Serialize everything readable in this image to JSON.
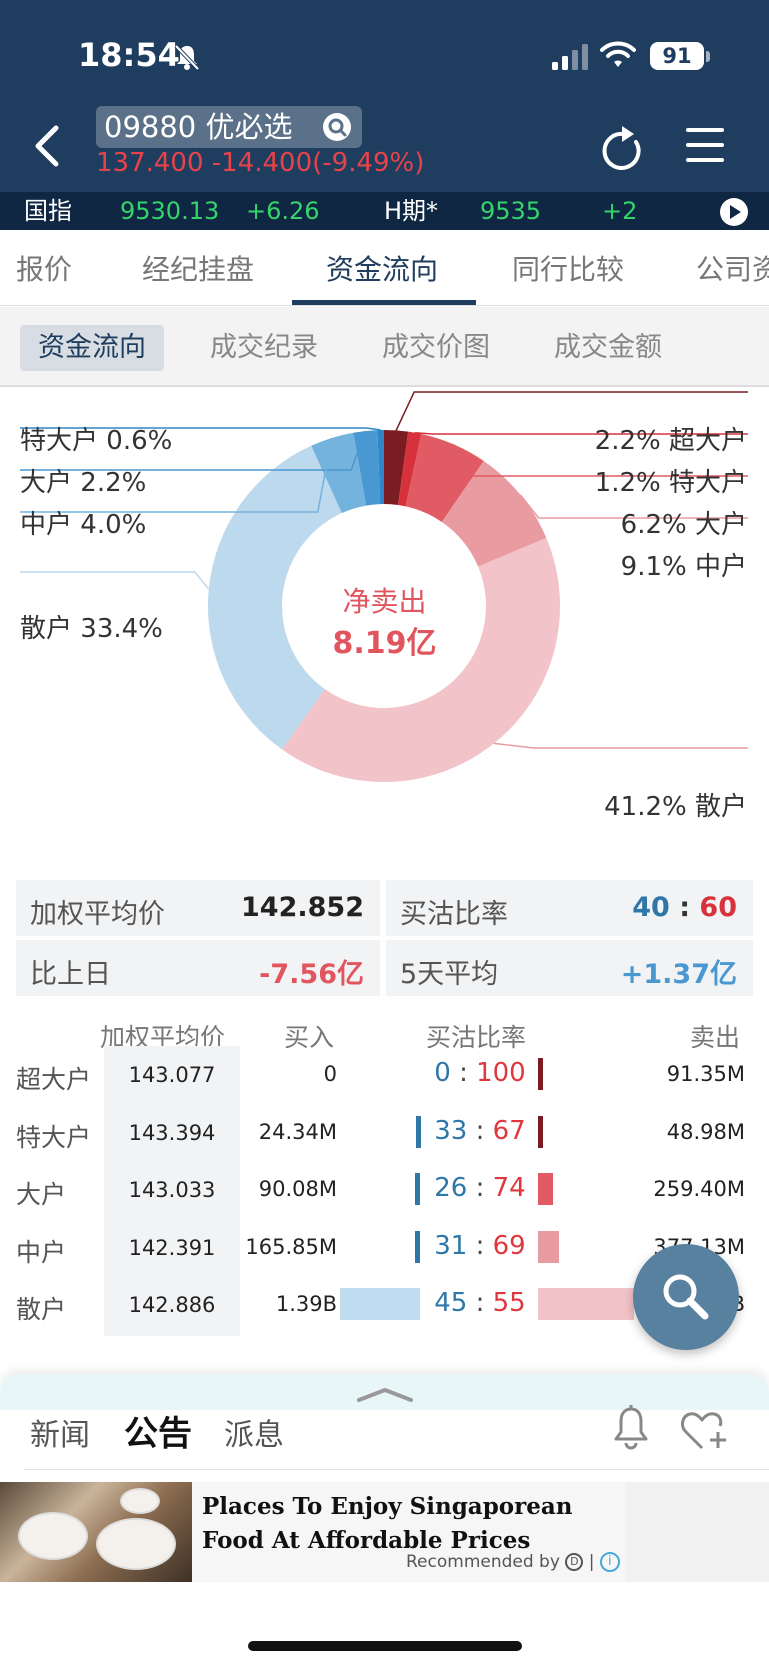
{
  "status_bar": {
    "time": "18:54",
    "battery": "91"
  },
  "header": {
    "ticker": "09880 优必选",
    "quote": "137.400 -14.400(-9.49%)"
  },
  "index_bar": {
    "label1": "国指",
    "value1": "9530.13",
    "change1": "+6.26",
    "label2": "H期*",
    "value2": "9535",
    "change2": "+2"
  },
  "tabs": [
    "报价",
    "经纪挂盘",
    "资金流向",
    "同行比较",
    "公司资"
  ],
  "subtabs": [
    "资金流向",
    "成交纪录",
    "成交价图",
    "成交金额"
  ],
  "donut": {
    "center_title": "净卖出",
    "center_value": "8.19亿",
    "buy_labels": [
      {
        "name": "特大户",
        "pct": "0.6%"
      },
      {
        "name": "大户",
        "pct": "2.2%"
      },
      {
        "name": "中户",
        "pct": "4.0%"
      },
      {
        "name": "散户",
        "pct": "33.4%"
      }
    ],
    "sell_labels": [
      {
        "name": "超大户",
        "pct": "2.2%"
      },
      {
        "name": "特大户",
        "pct": "1.2%"
      },
      {
        "name": "大户",
        "pct": "6.2%"
      },
      {
        "name": "中户",
        "pct": "9.1%"
      },
      {
        "name": "散户",
        "pct": "41.2%"
      }
    ],
    "buy_slices": [
      0.6,
      2.2,
      4.0,
      33.4
    ],
    "sell_slices": [
      2.2,
      1.2,
      6.2,
      9.1,
      41.2
    ],
    "buy_colors": [
      "#2f86c8",
      "#4a98d1",
      "#74b3de",
      "#bcd9ee"
    ],
    "sell_colors": [
      "#7a1c22",
      "#d7323c",
      "#e05b63",
      "#e89ca2",
      "#f2c3c8"
    ]
  },
  "summary": {
    "weighted_avg_label": "加权平均价",
    "weighted_avg": "142.852",
    "ratio_label": "买沽比率",
    "ratio_buy": "40",
    "ratio_colon": ":",
    "ratio_sell": "60",
    "vs_prev_label": "比上日",
    "vs_prev": "-7.56亿",
    "avg5_label": "5天平均",
    "avg5": "+1.37亿"
  },
  "table": {
    "headers": [
      "加权平均价",
      "买入",
      "买沽比率",
      "卖出"
    ],
    "rows": [
      {
        "name": "超大户",
        "avg": "143.077",
        "buy": "0",
        "ratio_buy": "0",
        "ratio_sell": "100",
        "sell": "91.35M",
        "buy_share": 0,
        "sell_share": 0.053
      },
      {
        "name": "特大户",
        "avg": "143.394",
        "buy": "24.34M",
        "ratio_buy": "33",
        "ratio_sell": "67",
        "sell": "48.98M",
        "buy_share": 0.017,
        "sell_share": 0.029
      },
      {
        "name": "大户",
        "avg": "143.033",
        "buy": "90.08M",
        "ratio_buy": "26",
        "ratio_sell": "74",
        "sell": "259.40M",
        "buy_share": 0.065,
        "sell_share": 0.152
      },
      {
        "name": "中户",
        "avg": "142.391",
        "buy": "165.85M",
        "ratio_buy": "31",
        "ratio_sell": "69",
        "sell": "377.13M",
        "buy_share": 0.119,
        "sell_share": 0.221
      },
      {
        "name": "散户",
        "avg": "142.886",
        "buy": "1.39B",
        "ratio_buy": "45",
        "ratio_sell": "55",
        "sell": "1.71B",
        "buy_share": 1.0,
        "sell_share": 1.0
      }
    ]
  },
  "bottom": {
    "tabs": [
      "新闻",
      "公告",
      "派息"
    ],
    "ad_title": "Places To Enjoy Singaporean Food At Affordable Prices",
    "ad_recommended": "Recommended by"
  },
  "icons": [
    "bell-muted-icon",
    "signal-icon",
    "wifi-icon",
    "back-icon",
    "search-icon",
    "refresh-icon",
    "menu-icon",
    "play-icon",
    "bell-icon",
    "heart-plus-icon",
    "chevron-up-icon",
    "info-icon"
  ]
}
